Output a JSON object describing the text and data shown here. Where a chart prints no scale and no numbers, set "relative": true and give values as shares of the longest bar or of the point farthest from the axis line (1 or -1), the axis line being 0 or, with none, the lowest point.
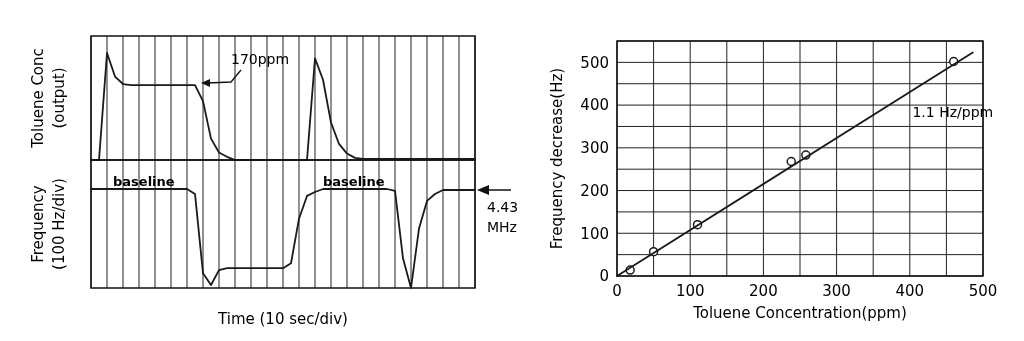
{
  "chart_data": [
    {
      "type": "line",
      "relative": true,
      "ylabel": "Toluene Conc\n(output)",
      "tick_labels": false,
      "grid": "x",
      "annotations": [
        "170ppm"
      ],
      "categories": [
        null,
        null,
        null,
        null,
        null,
        null,
        null,
        null,
        null,
        null,
        null,
        null,
        null,
        null,
        null,
        null,
        null,
        null,
        null,
        null,
        null,
        null,
        null,
        null,
        null,
        null,
        null,
        null,
        null,
        null,
        null,
        null,
        null,
        null,
        null,
        null,
        null,
        null,
        null,
        null,
        null,
        null,
        null,
        null,
        null,
        null,
        null,
        null,
        null
      ],
      "series": [
        {
          "color": "#1a1a1a",
          "values": [
            0,
            0,
            1,
            0.78,
            0.71,
            0.7,
            0.7,
            0.7,
            0.7,
            0.7,
            0.7,
            0.7,
            0.7,
            0.7,
            0.55,
            0.2,
            0.07,
            0.03,
            0,
            0,
            0,
            0,
            0,
            0,
            0,
            0,
            0,
            0,
            0.95,
            0.75,
            0.35,
            0.15,
            0.06,
            0.02,
            0.01,
            0.01,
            0.01,
            0.01,
            0.01,
            0.01,
            0.01,
            0.01,
            0.01,
            0.01,
            0.01,
            0.01,
            0.01,
            0.01,
            0.01
          ]
        }
      ]
    },
    {
      "type": "line",
      "relative": true,
      "ylabel": "Frequency\n(100 Hz/div)",
      "xlabel": "Time (10 sec/div)",
      "tick_labels": false,
      "grid": "x",
      "annotations": [
        "baseline",
        "baseline",
        "4.43 MHz"
      ],
      "categories": [
        null,
        null,
        null,
        null,
        null,
        null,
        null,
        null,
        null,
        null,
        null,
        null,
        null,
        null,
        null,
        null,
        null,
        null,
        null,
        null,
        null,
        null,
        null,
        null,
        null,
        null,
        null,
        null,
        null,
        null,
        null,
        null,
        null,
        null,
        null,
        null,
        null,
        null,
        null,
        null,
        null,
        null,
        null,
        null,
        null,
        null,
        null,
        null,
        null
      ],
      "series": [
        {
          "color": "#1a1a1a",
          "values": [
            1,
            1,
            1,
            1,
            1,
            1,
            1,
            1,
            1,
            1,
            1,
            1,
            1,
            0.95,
            0.15,
            0.03,
            0.18,
            0.2,
            0.2,
            0.2,
            0.2,
            0.2,
            0.2,
            0.2,
            0.2,
            0.25,
            0.7,
            0.93,
            0.97,
            1,
            1,
            1,
            1,
            1,
            1,
            1,
            1,
            1,
            0.98,
            0.3,
            0,
            0.6,
            0.88,
            0.95,
            0.99,
            0.99,
            0.99,
            0.99,
            0.99
          ]
        }
      ]
    },
    {
      "type": "scatter",
      "xlabel": "Toluene Concentration(ppm)",
      "ylabel": "Frequency decrease(Hz)",
      "xlim": [
        0,
        500
      ],
      "ylim": [
        0,
        550
      ],
      "grid": true,
      "xticks": [
        0,
        {
          "value": 50,
          "label": null
        },
        100,
        {
          "value": 150,
          "label": null
        },
        200,
        {
          "value": 250,
          "label": null
        },
        300,
        {
          "value": 350,
          "label": null
        },
        400,
        {
          "value": 450,
          "label": null
        },
        500
      ],
      "yticks": [
        0,
        {
          "value": 50,
          "label": null
        },
        100,
        {
          "value": 150,
          "label": null
        },
        200,
        {
          "value": 250,
          "label": null
        },
        300,
        {
          "value": 350,
          "label": null
        },
        400,
        {
          "value": 450,
          "label": null
        },
        500,
        {
          "value": 550,
          "label": null
        }
      ],
      "annotations": [
        {
          "text": "1.1 Hz/ppm",
          "x": 420,
          "y": 452
        }
      ],
      "series": [
        {
          "marker": "circle",
          "color": "#1a1a1a",
          "x": [
            18,
            50,
            110,
            238,
            258,
            460
          ],
          "values": [
            14,
            57,
            120,
            268,
            283,
            502
          ]
        },
        {
          "type": "line",
          "marker": "none",
          "line_style": "solid",
          "color": "#1a1a1a",
          "x": [
            0,
            486
          ],
          "values": [
            0,
            523
          ]
        }
      ]
    }
  ]
}
